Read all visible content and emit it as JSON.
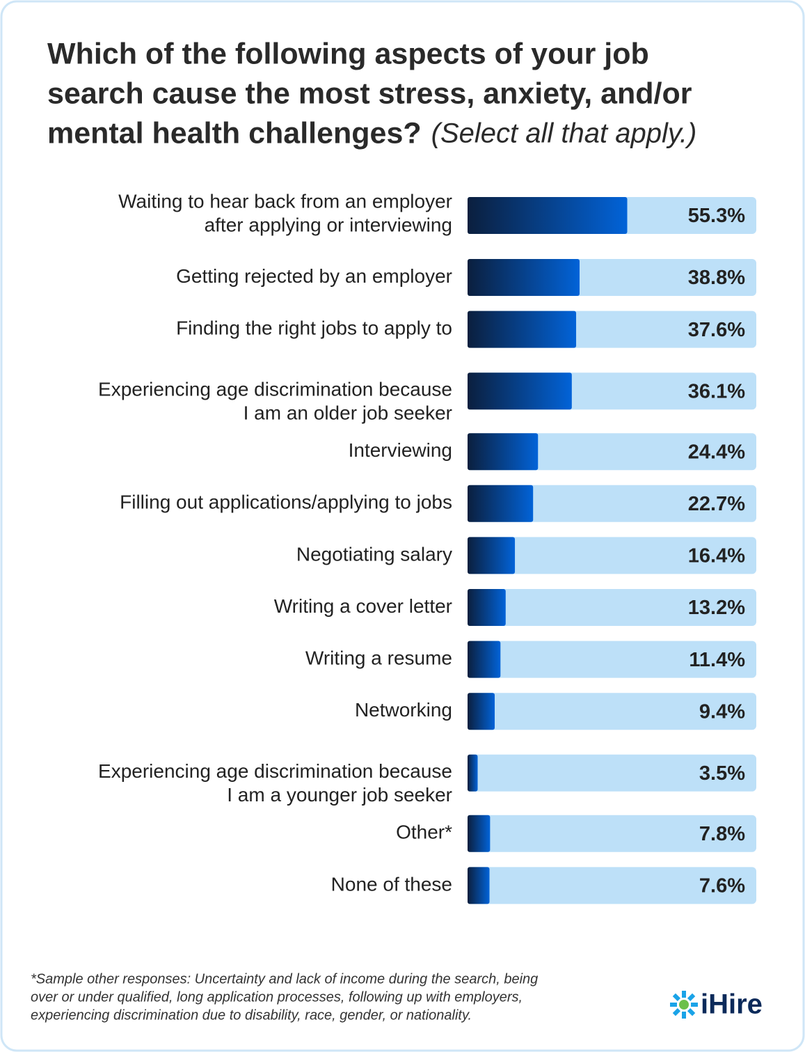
{
  "chart_data": {
    "type": "hbar",
    "title_lines": [
      "Which of the following aspects of your job",
      "search cause the most stress, anxiety, and/or",
      "mental health challenges?"
    ],
    "subtitle": "(Select all that apply.)",
    "categories": [
      [
        "Waiting to hear back from an employer",
        "after applying or interviewing"
      ],
      [
        "Getting rejected by an employer"
      ],
      [
        "Finding the right jobs to apply to"
      ],
      [
        "Experiencing age discrimination because",
        "I am an older job seeker"
      ],
      [
        "Interviewing"
      ],
      [
        "Filling out applications/applying to jobs"
      ],
      [
        "Negotiating salary"
      ],
      [
        "Writing a cover letter"
      ],
      [
        "Writing a resume"
      ],
      [
        "Networking"
      ],
      [
        "Experiencing age discrimination because",
        "I am a younger job seeker"
      ],
      [
        "Other*"
      ],
      [
        "None of these"
      ]
    ],
    "values": [
      55.3,
      38.8,
      37.6,
      36.1,
      24.4,
      22.7,
      16.4,
      13.2,
      11.4,
      9.4,
      3.5,
      7.8,
      7.6
    ],
    "value_labels": [
      "55.3%",
      "38.8%",
      "37.6%",
      "36.1%",
      "24.4%",
      "22.7%",
      "16.4%",
      "13.2%",
      "11.4%",
      "9.4%",
      "3.5%",
      "7.8%",
      "7.6%"
    ],
    "xlim": [
      0,
      100
    ],
    "color_start": "#0b1f3e",
    "color_end": "#0263d8",
    "track_color": "#bde0f8",
    "footnote_lines": [
      "*Sample other responses: Uncertainty and lack of income during the search, being",
      "over or under qualified, long application processes, following up with employers,",
      "experiencing discrimination due to disability, race, gender, or nationality."
    ],
    "logo": "iHire"
  }
}
